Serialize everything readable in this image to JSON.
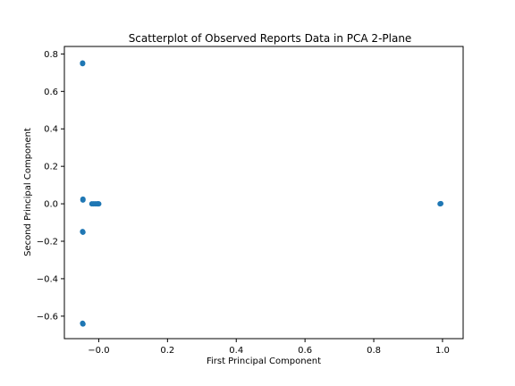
{
  "chart_data": {
    "type": "scatter",
    "title": "Scatterplot of Observed Reports Data in PCA 2-Plane",
    "xlabel": "First Principal Component",
    "ylabel": "Second Principal Component",
    "xlim": [
      -0.1,
      1.06
    ],
    "ylim": [
      -0.72,
      0.84
    ],
    "xticks": [
      0.0,
      0.2,
      0.4,
      0.6,
      0.8,
      1.0
    ],
    "xtick_labels": [
      "−0.0",
      "0.2",
      "0.4",
      "0.6",
      "0.8",
      "1.0"
    ],
    "yticks": [
      -0.6,
      -0.4,
      -0.2,
      0.0,
      0.2,
      0.4,
      0.6,
      0.8
    ],
    "ytick_labels": [
      "−0.6",
      "−0.4",
      "−0.2",
      "0.0",
      "0.2",
      "0.4",
      "0.6",
      "0.8"
    ],
    "grid": false,
    "marker_color": "#1f77b4",
    "series": [
      {
        "points": [
          {
            "x": -0.047,
            "y": 0.752
          },
          {
            "x": -0.047,
            "y": 0.748
          },
          {
            "x": -0.046,
            "y": 0.025
          },
          {
            "x": -0.046,
            "y": 0.02
          },
          {
            "x": -0.047,
            "y": -0.148
          },
          {
            "x": -0.046,
            "y": -0.152
          },
          {
            "x": -0.047,
            "y": -0.638
          },
          {
            "x": -0.046,
            "y": -0.642
          },
          {
            "x": -0.02,
            "y": 0.0
          },
          {
            "x": -0.015,
            "y": 0.0
          },
          {
            "x": -0.01,
            "y": 0.0
          },
          {
            "x": -0.005,
            "y": 0.0
          },
          {
            "x": -0.002,
            "y": 0.0
          },
          {
            "x": 0.0,
            "y": 0.0
          },
          {
            "x": 0.993,
            "y": 0.0
          },
          {
            "x": 0.995,
            "y": 0.001
          }
        ]
      }
    ]
  }
}
